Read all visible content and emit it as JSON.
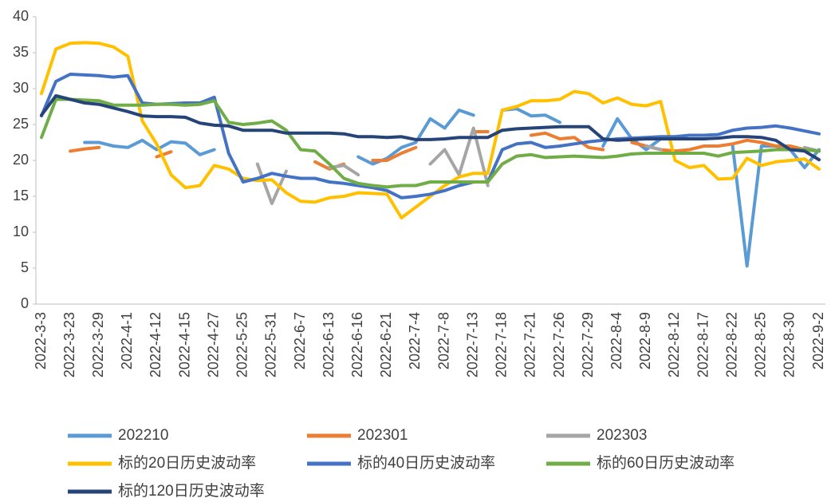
{
  "chart_data": {
    "type": "line",
    "categories": [
      "2022-3-3",
      null,
      "2022-3-23",
      null,
      "2022-3-29",
      null,
      "2022-4-1",
      null,
      "2022-4-12",
      null,
      "2022-4-15",
      null,
      "2022-4-27",
      null,
      "2022-5-25",
      null,
      "2022-5-31",
      null,
      "2022-6-7",
      null,
      "2022-6-13",
      null,
      "2022-6-16",
      null,
      "2022-6-21",
      null,
      "2022-7-4",
      null,
      "2022-7-8",
      null,
      "2022-7-13",
      null,
      "2022-7-18",
      null,
      "2022-7-21",
      null,
      "2022-7-26",
      null,
      "2022-7-29",
      null,
      "2022-8-4",
      null,
      "2022-8-9",
      null,
      "2022-8-12",
      null,
      "2022-8-17",
      null,
      "2022-8-22",
      null,
      "2022-8-25",
      null,
      "2022-8-30",
      null,
      "2022-9-2"
    ],
    "series": [
      {
        "name": "202210",
        "color": "#5b9bd5",
        "values": [
          null,
          null,
          null,
          22.5,
          22.5,
          22.0,
          21.8,
          22.8,
          21.5,
          22.6,
          22.4,
          20.8,
          21.5,
          null,
          null,
          null,
          null,
          null,
          null,
          null,
          null,
          null,
          20.5,
          19.5,
          20.3,
          21.8,
          22.5,
          25.8,
          24.5,
          27.0,
          26.3,
          null,
          27.0,
          27.2,
          26.2,
          26.3,
          25.3,
          null,
          null,
          22.0,
          25.8,
          23.0,
          21.5,
          23.0,
          null,
          null,
          null,
          null,
          22.0,
          5.3,
          22.0,
          22.0,
          21.5,
          19.0,
          21.5
        ]
      },
      {
        "name": "202301",
        "color": "#ed7d31",
        "values": [
          null,
          null,
          21.3,
          21.6,
          21.8,
          null,
          null,
          null,
          20.5,
          21.2,
          null,
          null,
          null,
          null,
          null,
          null,
          null,
          null,
          null,
          19.8,
          18.8,
          19.5,
          null,
          20.0,
          20.0,
          21.0,
          21.8,
          null,
          null,
          null,
          24.0,
          24.0,
          null,
          null,
          23.5,
          23.8,
          23.0,
          23.2,
          21.8,
          21.5,
          null,
          22.5,
          22.0,
          21.5,
          21.3,
          21.5,
          22.0,
          22.0,
          22.3,
          22.8,
          22.5,
          22.0,
          22.0,
          21.5,
          21.3
        ]
      },
      {
        "name": "202303",
        "color": "#a5a5a5",
        "values": [
          null,
          null,
          null,
          null,
          null,
          null,
          null,
          null,
          null,
          null,
          null,
          null,
          null,
          null,
          null,
          19.5,
          14.0,
          18.5,
          null,
          null,
          19.0,
          19.3,
          18.0,
          null,
          null,
          null,
          null,
          19.5,
          21.5,
          18.0,
          24.5,
          16.5,
          null,
          21.5,
          null,
          null,
          null,
          null,
          null,
          null,
          null,
          null,
          22.0,
          21.5,
          null,
          null,
          null,
          null,
          null,
          null,
          null,
          null,
          null,
          21.8,
          21.3
        ]
      },
      {
        "name": "标的20日历史波动率",
        "color": "#ffc000",
        "values": [
          29.3,
          35.5,
          36.3,
          36.4,
          36.3,
          35.8,
          34.5,
          25.5,
          22.3,
          18.0,
          16.2,
          16.5,
          19.3,
          18.8,
          17.5,
          17.2,
          17.3,
          15.5,
          14.3,
          14.2,
          14.8,
          15.0,
          15.5,
          15.4,
          15.3,
          12.0,
          13.5,
          15.0,
          16.5,
          17.7,
          18.2,
          18.2,
          27.0,
          27.5,
          28.3,
          28.3,
          28.5,
          29.6,
          29.3,
          28.0,
          28.7,
          27.8,
          27.6,
          28.2,
          20.0,
          19.0,
          19.3,
          17.4,
          17.5,
          20.3,
          19.3,
          19.8,
          20.0,
          20.2,
          18.8
        ]
      },
      {
        "name": "标的40日历史波动率",
        "color": "#4472c4",
        "values": [
          26.2,
          31.0,
          32.0,
          31.9,
          31.8,
          31.6,
          31.8,
          28.0,
          27.8,
          27.9,
          28.0,
          28.0,
          28.8,
          21.0,
          17.0,
          17.5,
          18.2,
          17.8,
          17.5,
          17.5,
          17.0,
          16.8,
          16.5,
          16.2,
          15.8,
          14.8,
          15.0,
          15.3,
          15.8,
          16.5,
          17.0,
          17.0,
          21.5,
          22.3,
          22.5,
          21.8,
          22.0,
          22.3,
          22.6,
          22.8,
          23.0,
          23.1,
          23.2,
          23.3,
          23.3,
          23.5,
          23.5,
          23.6,
          24.2,
          24.5,
          24.6,
          24.8,
          24.5,
          24.1,
          23.7
        ]
      },
      {
        "name": "标的60日历史波动率",
        "color": "#70ad47",
        "values": [
          23.2,
          28.5,
          28.5,
          28.4,
          28.3,
          27.7,
          27.7,
          27.7,
          27.8,
          27.8,
          27.7,
          27.8,
          28.3,
          25.3,
          25.0,
          25.2,
          25.5,
          24.2,
          21.5,
          21.3,
          19.5,
          17.5,
          16.8,
          16.5,
          16.3,
          16.5,
          16.5,
          17.0,
          17.0,
          17.0,
          17.0,
          17.0,
          19.5,
          20.6,
          20.8,
          20.4,
          20.5,
          20.6,
          20.5,
          20.4,
          20.6,
          20.9,
          21.0,
          21.0,
          21.0,
          21.0,
          21.0,
          20.6,
          21.1,
          21.2,
          21.3,
          21.5,
          21.5,
          21.5,
          21.3
        ]
      },
      {
        "name": "标的120日历史波动率",
        "color": "#264478",
        "values": [
          26.3,
          29.0,
          28.5,
          28.0,
          27.8,
          27.3,
          26.8,
          26.2,
          26.1,
          26.1,
          26.0,
          25.2,
          24.9,
          24.8,
          24.2,
          24.2,
          24.2,
          23.8,
          23.8,
          23.8,
          23.8,
          23.7,
          23.3,
          23.3,
          23.2,
          23.3,
          22.9,
          22.9,
          23.0,
          23.2,
          23.2,
          23.2,
          24.2,
          24.4,
          24.5,
          24.6,
          24.7,
          24.7,
          24.7,
          23.0,
          22.8,
          22.9,
          23.0,
          23.0,
          23.0,
          23.0,
          23.0,
          23.1,
          23.3,
          23.3,
          23.2,
          22.8,
          21.5,
          21.3,
          20.1
        ]
      }
    ],
    "ylim": [
      0,
      40
    ],
    "yticks": [
      0,
      5,
      10,
      15,
      20,
      25,
      30,
      35,
      40
    ],
    "grid": false
  }
}
